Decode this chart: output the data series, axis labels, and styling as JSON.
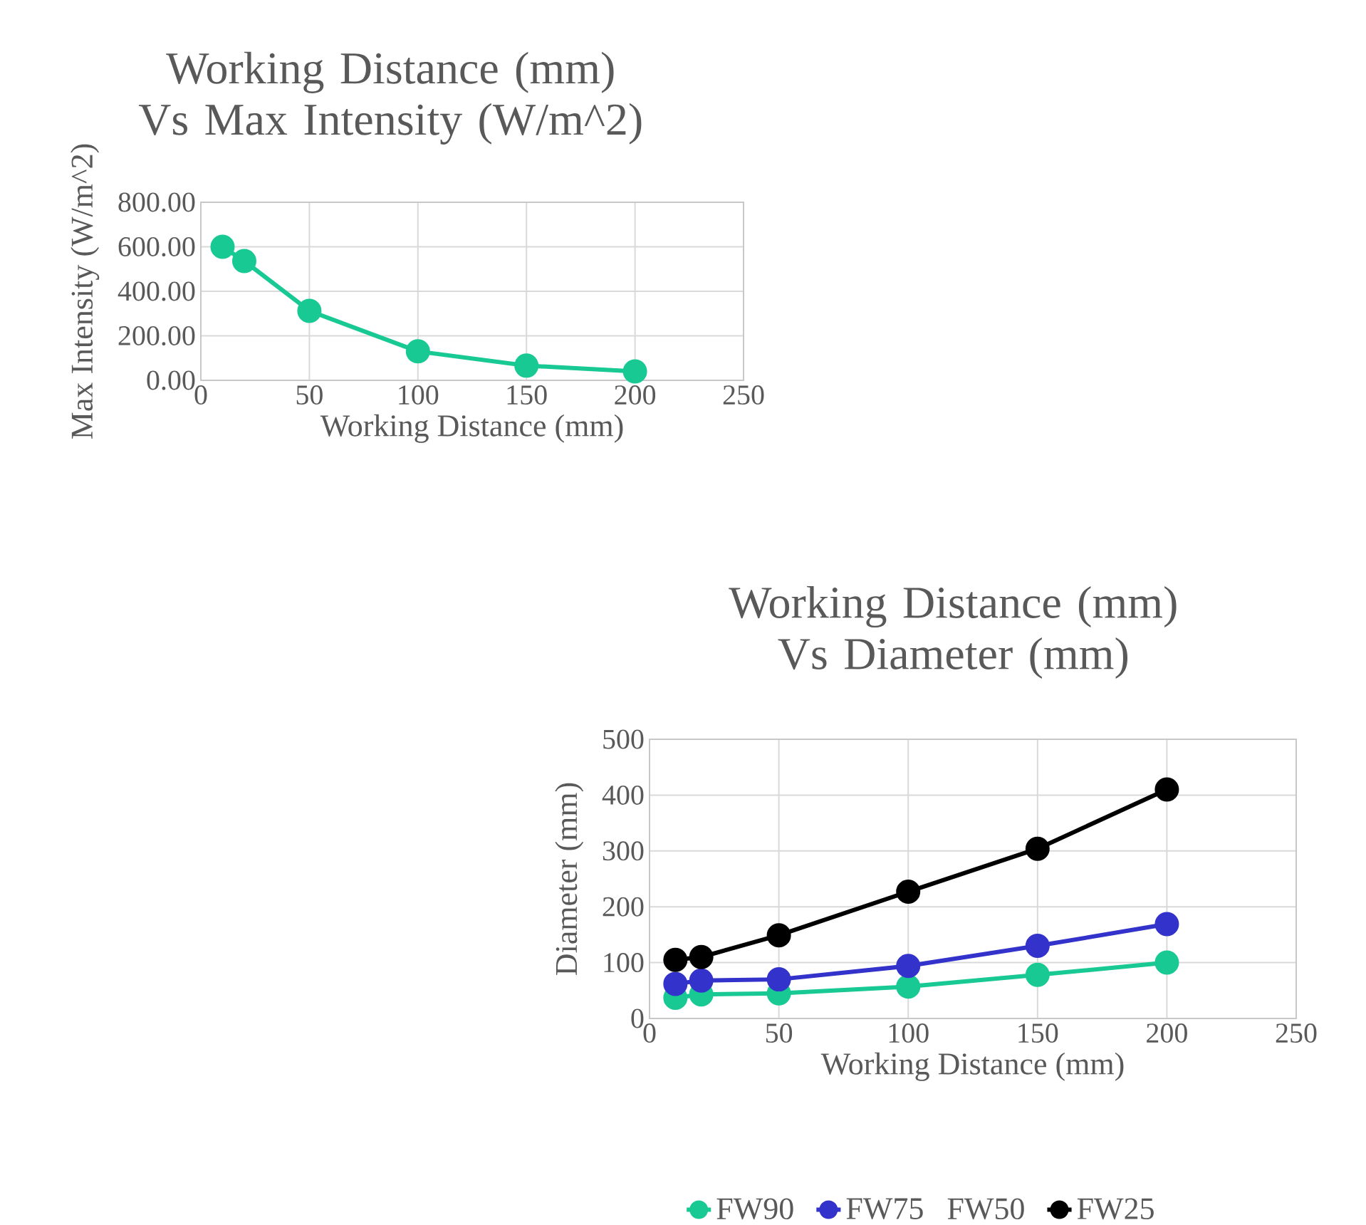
{
  "chart_data": [
    {
      "type": "line",
      "title": "Working Distance (mm) Vs Max Intensity (W/m^2)",
      "xlabel": "Working Distance (mm)",
      "ylabel": "Max Intensity (W/m^2)",
      "x": [
        10,
        20,
        50,
        100,
        150,
        200
      ],
      "series": [
        {
          "color": "#19c994",
          "values": [
            600,
            536,
            312,
            130,
            66,
            40
          ]
        }
      ],
      "xlim": [
        0,
        250
      ],
      "xticks": [
        0,
        50,
        100,
        150,
        200,
        250
      ],
      "ylim": [
        0,
        800
      ],
      "yticks": [
        {
          "value": 0,
          "label": "0.00"
        },
        {
          "value": 200,
          "label": "200.00"
        },
        {
          "value": 400,
          "label": "400.00"
        },
        {
          "value": 600,
          "label": "600.00"
        },
        {
          "value": 800,
          "label": "800.00"
        }
      ],
      "grid": true,
      "marker": "circle"
    },
    {
      "type": "line",
      "title": "Working Distance (mm) Vs Diameter (mm)",
      "xlabel": "Working Distance (mm)",
      "ylabel": "Diameter (mm)",
      "x": [
        10,
        20,
        50,
        100,
        150,
        200
      ],
      "series": [
        {
          "name": "FW90",
          "color": "#19c994",
          "values": [
            37,
            43,
            45,
            57,
            78,
            100
          ]
        },
        {
          "name": "FW75",
          "color": "#3333cc",
          "values": [
            62,
            68,
            70,
            94,
            130,
            169
          ]
        },
        {
          "name": "FW50",
          "values": [
            null,
            null,
            null,
            null,
            null,
            null
          ]
        },
        {
          "name": "FW25",
          "color": "#000000",
          "values": [
            105,
            110,
            149,
            227,
            304,
            410
          ]
        }
      ],
      "xlim": [
        0,
        250
      ],
      "xticks": [
        0,
        50,
        100,
        150,
        200,
        250
      ],
      "ylim": [
        0,
        500
      ],
      "yticks": [
        0,
        100,
        200,
        300,
        400,
        500
      ],
      "grid": true,
      "marker": "circle",
      "legend": "bottom"
    }
  ]
}
